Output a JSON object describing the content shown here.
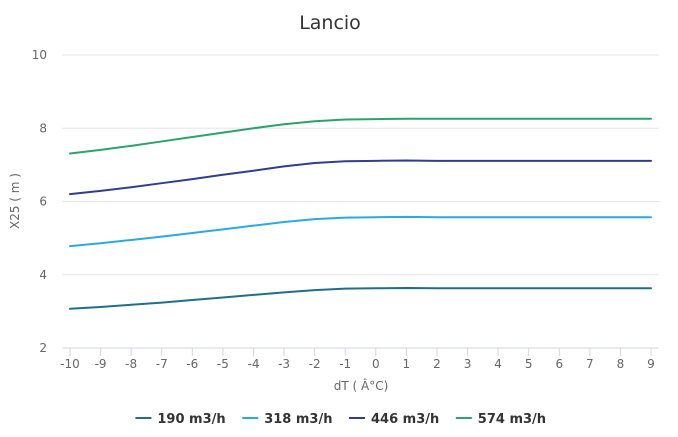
{
  "chart_data": {
    "type": "line",
    "title": "Lancio",
    "xlabel": "dT ( Â°C)",
    "ylabel": "X25 ( m )",
    "x": [
      -10,
      -9,
      -8,
      -7,
      -6,
      -5,
      -4,
      -3,
      -2,
      -1,
      0,
      1,
      2,
      3,
      4,
      5,
      6,
      7,
      8,
      9
    ],
    "xlim": [
      -10,
      9
    ],
    "ylim": [
      2,
      10
    ],
    "yticks": [
      2,
      4,
      6,
      8,
      10
    ],
    "grid": true,
    "legend_position": "bottom",
    "series": [
      {
        "name": "190 m3/h",
        "color": "#1f6e8c",
        "values": [
          3.07,
          3.12,
          3.18,
          3.24,
          3.31,
          3.38,
          3.45,
          3.52,
          3.58,
          3.62,
          3.63,
          3.64,
          3.63,
          3.63,
          3.63,
          3.63,
          3.63,
          3.63,
          3.63,
          3.63
        ]
      },
      {
        "name": "318 m3/h",
        "color": "#29abe2",
        "values": [
          4.78,
          4.86,
          4.95,
          5.04,
          5.14,
          5.24,
          5.34,
          5.44,
          5.52,
          5.56,
          5.57,
          5.58,
          5.57,
          5.57,
          5.57,
          5.57,
          5.57,
          5.57,
          5.57,
          5.57
        ]
      },
      {
        "name": "446 m3/h",
        "color": "#2e3f8f",
        "values": [
          6.2,
          6.29,
          6.39,
          6.5,
          6.61,
          6.73,
          6.84,
          6.96,
          7.05,
          7.1,
          7.11,
          7.12,
          7.11,
          7.11,
          7.11,
          7.11,
          7.11,
          7.11,
          7.11,
          7.11
        ]
      },
      {
        "name": "574 m3/h",
        "color": "#2ba36b",
        "values": [
          7.31,
          7.41,
          7.52,
          7.64,
          7.76,
          7.88,
          8.0,
          8.11,
          8.19,
          8.24,
          8.25,
          8.26,
          8.26,
          8.26,
          8.26,
          8.26,
          8.26,
          8.26,
          8.26,
          8.26
        ]
      }
    ]
  }
}
